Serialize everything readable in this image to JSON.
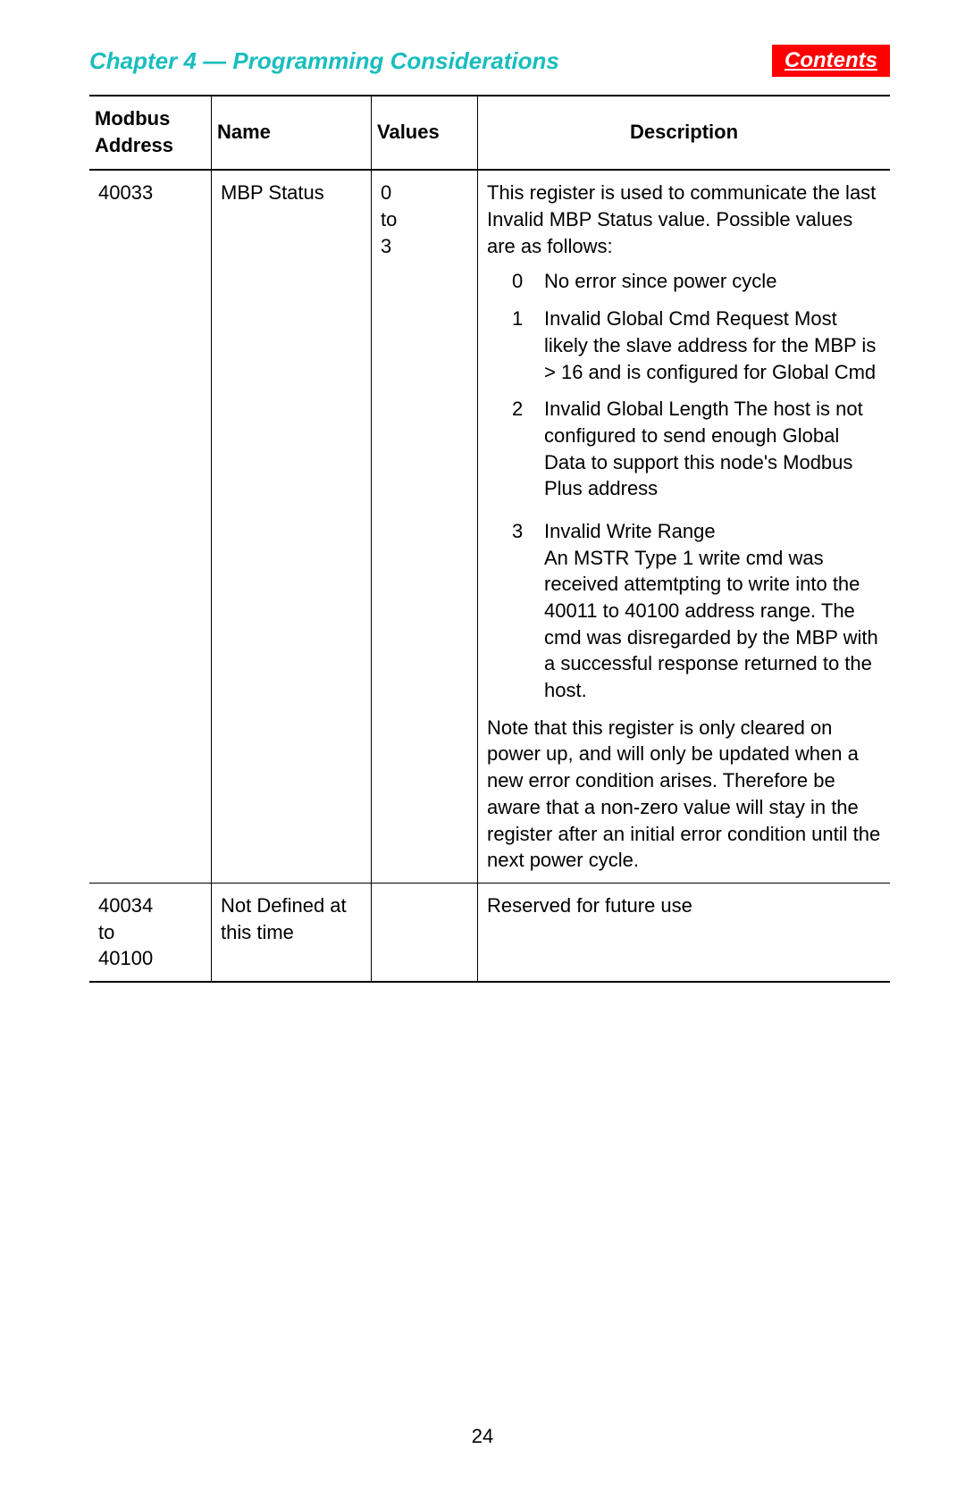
{
  "colors": {
    "chapter": "#19bdbe",
    "contents_bg": "#ff0000",
    "contents_fg": "#ffffff"
  },
  "header": {
    "chapter": "Chapter 4 — Programming Considerations",
    "contents": "Contents"
  },
  "table": {
    "columns": {
      "address": "Modbus Address",
      "name": "Name",
      "values": "Values",
      "description": "Description"
    },
    "rows": [
      {
        "address": "40033",
        "name": "MBP Status",
        "values": "0\nto\n3",
        "desc_intro": "This register is used to communicate the last Invalid MBP Status value.  Possible values are as follows:",
        "enums": [
          {
            "n": "0",
            "t": "No error since power cycle"
          },
          {
            "n": "1",
            "t": "Invalid Global Cmd Request Most likely the slave address for the MBP is > 16 and is configured for Global Cmd"
          },
          {
            "n": "2",
            "t": "Invalid Global Length The host is not configured to send enough Global Data to support this node's Modbus Plus address"
          },
          {
            "n": "3",
            "t": "Invalid Write Range\nAn MSTR Type 1 write cmd was received attemtpting to write into the 40011 to 40100 address range.  The cmd was disregarded by the MBP with a successful response returned to the host."
          }
        ],
        "note": "Note that this register is only cleared on power up, and will only be updated when a new error condition arises.  Therefore be aware that a non-zero value will stay in the register after an initial error condition until the next power cycle."
      },
      {
        "address": "40034\nto\n40100",
        "name": "Not Defined at this time",
        "values": "",
        "description": "Reserved for future use"
      }
    ]
  },
  "page_number": "24"
}
